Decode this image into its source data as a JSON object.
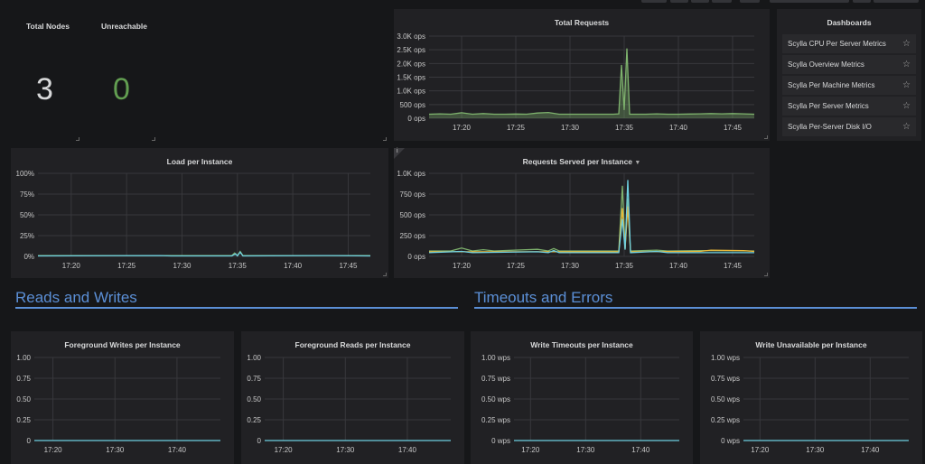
{
  "colors": {
    "accent": "#5b8fd6",
    "ok": "#629e51",
    "series_green": "#7eb26d",
    "series_yellow": "#eab839",
    "series_blue": "#6ed0e0"
  },
  "stats": [
    {
      "title": "Total Nodes",
      "value": "3",
      "color": "#d8d9da"
    },
    {
      "title": "Unreachable",
      "value": "0",
      "color": "#629e51"
    }
  ],
  "dashboards": {
    "title": "Dashboards",
    "items": [
      {
        "label": "Scylla CPU Per Server Metrics",
        "icon": "star-icon"
      },
      {
        "label": "Scylla Overview Metrics",
        "icon": "star-icon"
      },
      {
        "label": "Scylla Per Machine Metrics",
        "icon": "star-icon"
      },
      {
        "label": "Scylla Per Server Metrics",
        "icon": "star-icon"
      },
      {
        "label": "Scylla Per-Server Disk I/O",
        "icon": "star-icon"
      }
    ]
  },
  "rows": [
    {
      "title": "Reads and Writes"
    },
    {
      "title": "Timeouts and Errors"
    }
  ],
  "chart_data": [
    {
      "id": "total-requests",
      "type": "area",
      "title": "Total Requests",
      "xrange": [
        "17:17",
        "17:47"
      ],
      "ylim": [
        0,
        3000
      ],
      "yticks": [
        {
          "v": 0,
          "label": "0 ops"
        },
        {
          "v": 500,
          "label": "500 ops"
        },
        {
          "v": 1000,
          "label": "1.0K ops"
        },
        {
          "v": 1500,
          "label": "1.5K ops"
        },
        {
          "v": 2000,
          "label": "2.0K ops"
        },
        {
          "v": 2500,
          "label": "2.5K ops"
        },
        {
          "v": 3000,
          "label": "3.0K ops"
        }
      ],
      "xticks": [
        "17:20",
        "17:25",
        "17:30",
        "17:35",
        "17:40",
        "17:45"
      ],
      "series": [
        {
          "color": "#7eb26d",
          "points": [
            [
              "17:17",
              150
            ],
            [
              "17:18",
              160
            ],
            [
              "17:19",
              150
            ],
            [
              "17:20",
              200
            ],
            [
              "17:21",
              150
            ],
            [
              "17:22",
              170
            ],
            [
              "17:23",
              150
            ],
            [
              "17:24",
              150
            ],
            [
              "17:25",
              155
            ],
            [
              "17:26",
              150
            ],
            [
              "17:27",
              190
            ],
            [
              "17:28",
              210
            ],
            [
              "17:29",
              150
            ],
            [
              "17:30",
              150
            ],
            [
              "17:31",
              150
            ],
            [
              "17:32",
              150
            ],
            [
              "17:33",
              150
            ],
            [
              "17:34",
              150
            ],
            [
              "17:34:30",
              160
            ],
            [
              "17:34:45",
              1950
            ],
            [
              "17:35:00",
              300
            ],
            [
              "17:35:15",
              2550
            ],
            [
              "17:35:30",
              150
            ],
            [
              "17:36",
              150
            ],
            [
              "17:37",
              150
            ],
            [
              "17:38",
              160
            ],
            [
              "17:39",
              150
            ],
            [
              "17:40",
              150
            ],
            [
              "17:41",
              155
            ],
            [
              "17:42",
              160
            ],
            [
              "17:43",
              170
            ],
            [
              "17:44",
              160
            ],
            [
              "17:45",
              170
            ],
            [
              "17:46",
              160
            ],
            [
              "17:47",
              150
            ]
          ]
        }
      ]
    },
    {
      "id": "load-per-instance",
      "type": "line",
      "title": "Load per Instance",
      "xrange": [
        "17:17",
        "17:47"
      ],
      "ylim": [
        0,
        100
      ],
      "yticks": [
        {
          "v": 0,
          "label": "0%"
        },
        {
          "v": 25,
          "label": "25%"
        },
        {
          "v": 50,
          "label": "50%"
        },
        {
          "v": 75,
          "label": "75%"
        },
        {
          "v": 100,
          "label": "100%"
        }
      ],
      "xticks": [
        "17:20",
        "17:25",
        "17:30",
        "17:35",
        "17:40",
        "17:45"
      ],
      "series": [
        {
          "color": "#7eb26d",
          "points": [
            [
              "17:17",
              1
            ],
            [
              "17:34:30",
              1
            ],
            [
              "17:34:45",
              4
            ],
            [
              "17:35:00",
              1
            ],
            [
              "17:35:15",
              6
            ],
            [
              "17:35:30",
              1
            ],
            [
              "17:47",
              1
            ]
          ]
        },
        {
          "color": "#6ed0e0",
          "points": [
            [
              "17:17",
              0.5
            ],
            [
              "17:28",
              1
            ],
            [
              "17:29",
              0.5
            ],
            [
              "17:34:30",
              0.5
            ],
            [
              "17:34:50",
              3
            ],
            [
              "17:35:00",
              0.5
            ],
            [
              "17:35:15",
              5
            ],
            [
              "17:35:30",
              0.5
            ],
            [
              "17:43",
              1
            ],
            [
              "17:47",
              0.5
            ]
          ]
        }
      ]
    },
    {
      "id": "requests-served-per-instance",
      "type": "line",
      "title": "Requests Served per Instance",
      "xrange": [
        "17:17",
        "17:47"
      ],
      "ylim": [
        0,
        1000
      ],
      "yticks": [
        {
          "v": 0,
          "label": "0 ops"
        },
        {
          "v": 250,
          "label": "250 ops"
        },
        {
          "v": 500,
          "label": "500 ops"
        },
        {
          "v": 750,
          "label": "750 ops"
        },
        {
          "v": 1000,
          "label": "1.0K ops"
        }
      ],
      "xticks": [
        "17:20",
        "17:25",
        "17:30",
        "17:35",
        "17:40",
        "17:45"
      ],
      "series": [
        {
          "color": "#7eb26d",
          "points": [
            [
              "17:17",
              65
            ],
            [
              "17:19",
              65
            ],
            [
              "17:20",
              100
            ],
            [
              "17:21",
              65
            ],
            [
              "17:22",
              80
            ],
            [
              "17:23",
              65
            ],
            [
              "17:27",
              85
            ],
            [
              "17:28",
              65
            ],
            [
              "17:28:30",
              95
            ],
            [
              "17:29",
              65
            ],
            [
              "17:34:30",
              65
            ],
            [
              "17:34:50",
              850
            ],
            [
              "17:35:05",
              100
            ],
            [
              "17:35:20",
              700
            ],
            [
              "17:35:35",
              65
            ],
            [
              "17:38",
              75
            ],
            [
              "17:39",
              65
            ],
            [
              "17:42",
              70
            ],
            [
              "17:47",
              65
            ]
          ]
        },
        {
          "color": "#eab839",
          "points": [
            [
              "17:17",
              55
            ],
            [
              "17:34:30",
              55
            ],
            [
              "17:34:50",
              580
            ],
            [
              "17:35:05",
              90
            ],
            [
              "17:35:20",
              600
            ],
            [
              "17:35:35",
              55
            ],
            [
              "17:42",
              60
            ],
            [
              "17:43",
              75
            ],
            [
              "17:46",
              70
            ],
            [
              "17:47",
              60
            ]
          ]
        },
        {
          "color": "#6ed0e0",
          "points": [
            [
              "17:17",
              45
            ],
            [
              "17:20",
              60
            ],
            [
              "17:21",
              45
            ],
            [
              "17:27",
              55
            ],
            [
              "17:28",
              45
            ],
            [
              "17:28:30",
              70
            ],
            [
              "17:29",
              45
            ],
            [
              "17:34:30",
              45
            ],
            [
              "17:34:50",
              450
            ],
            [
              "17:35:05",
              80
            ],
            [
              "17:35:20",
              920
            ],
            [
              "17:35:35",
              45
            ],
            [
              "17:38",
              60
            ],
            [
              "17:39",
              45
            ],
            [
              "17:47",
              45
            ]
          ]
        }
      ]
    },
    {
      "id": "foreground-writes-per-instance",
      "type": "line",
      "title": "Foreground Writes per Instance",
      "xrange": [
        "17:17",
        "17:47"
      ],
      "ylim": [
        0,
        1
      ],
      "yticks": [
        {
          "v": 0,
          "label": "0"
        },
        {
          "v": 0.25,
          "label": "0.25"
        },
        {
          "v": 0.5,
          "label": "0.50"
        },
        {
          "v": 0.75,
          "label": "0.75"
        },
        {
          "v": 1,
          "label": "1.00"
        }
      ],
      "xticks": [
        "17:20",
        "17:30",
        "17:40"
      ],
      "series": [
        {
          "color": "#6ed0e0",
          "points": [
            [
              "17:17",
              0
            ],
            [
              "17:47",
              0
            ]
          ]
        }
      ]
    },
    {
      "id": "foreground-reads-per-instance",
      "type": "line",
      "title": "Foreground Reads per Instance",
      "xrange": [
        "17:17",
        "17:47"
      ],
      "ylim": [
        0,
        1
      ],
      "yticks": [
        {
          "v": 0,
          "label": "0"
        },
        {
          "v": 0.25,
          "label": "0.25"
        },
        {
          "v": 0.5,
          "label": "0.50"
        },
        {
          "v": 0.75,
          "label": "0.75"
        },
        {
          "v": 1,
          "label": "1.00"
        }
      ],
      "xticks": [
        "17:20",
        "17:30",
        "17:40"
      ],
      "series": [
        {
          "color": "#6ed0e0",
          "points": [
            [
              "17:17",
              0
            ],
            [
              "17:47",
              0
            ]
          ]
        }
      ]
    },
    {
      "id": "write-timeouts-per-instance",
      "type": "line",
      "title": "Write Timeouts per Instance",
      "xrange": [
        "17:17",
        "17:47"
      ],
      "ylim": [
        0,
        1
      ],
      "yticks": [
        {
          "v": 0,
          "label": "0 wps"
        },
        {
          "v": 0.25,
          "label": "0.25 wps"
        },
        {
          "v": 0.5,
          "label": "0.50 wps"
        },
        {
          "v": 0.75,
          "label": "0.75 wps"
        },
        {
          "v": 1,
          "label": "1.00 wps"
        }
      ],
      "xticks": [
        "17:20",
        "17:30",
        "17:40"
      ],
      "series": [
        {
          "color": "#6ed0e0",
          "points": [
            [
              "17:17",
              0
            ],
            [
              "17:47",
              0
            ]
          ]
        }
      ]
    },
    {
      "id": "write-unavailable-per-instance",
      "type": "line",
      "title": "Write Unavailable per Instance",
      "xrange": [
        "17:17",
        "17:47"
      ],
      "ylim": [
        0,
        1
      ],
      "yticks": [
        {
          "v": 0,
          "label": "0 wps"
        },
        {
          "v": 0.25,
          "label": "0.25 wps"
        },
        {
          "v": 0.5,
          "label": "0.50 wps"
        },
        {
          "v": 0.75,
          "label": "0.75 wps"
        },
        {
          "v": 1,
          "label": "1.00 wps"
        }
      ],
      "xticks": [
        "17:20",
        "17:30",
        "17:40"
      ],
      "series": [
        {
          "color": "#6ed0e0",
          "points": [
            [
              "17:17",
              0
            ],
            [
              "17:47",
              0
            ]
          ]
        }
      ]
    }
  ]
}
